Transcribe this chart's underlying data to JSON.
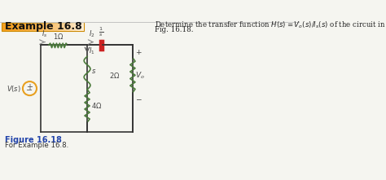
{
  "title": "Example 16.8",
  "body_bg": "#f5f5f0",
  "title_bg": "#f5a020",
  "border_color": "#999999",
  "desc_line1": "Determine the transfer function $H(s) = V_o(s)/I_s(s)$ of the circuit in",
  "desc_line2": "Fig. 16.18.",
  "figure_label": "Figure 16.18",
  "figure_sublabel": "For Example 16.8.",
  "wire_color": "#333333",
  "res_color": "#4a7a3a",
  "ind_color": "#4a7a3a",
  "cap_color": "#cc2222",
  "src_color": "#e8a020",
  "label_color": "#444444",
  "arrow_color": "#888888",
  "figtext_color": "#2244aa"
}
